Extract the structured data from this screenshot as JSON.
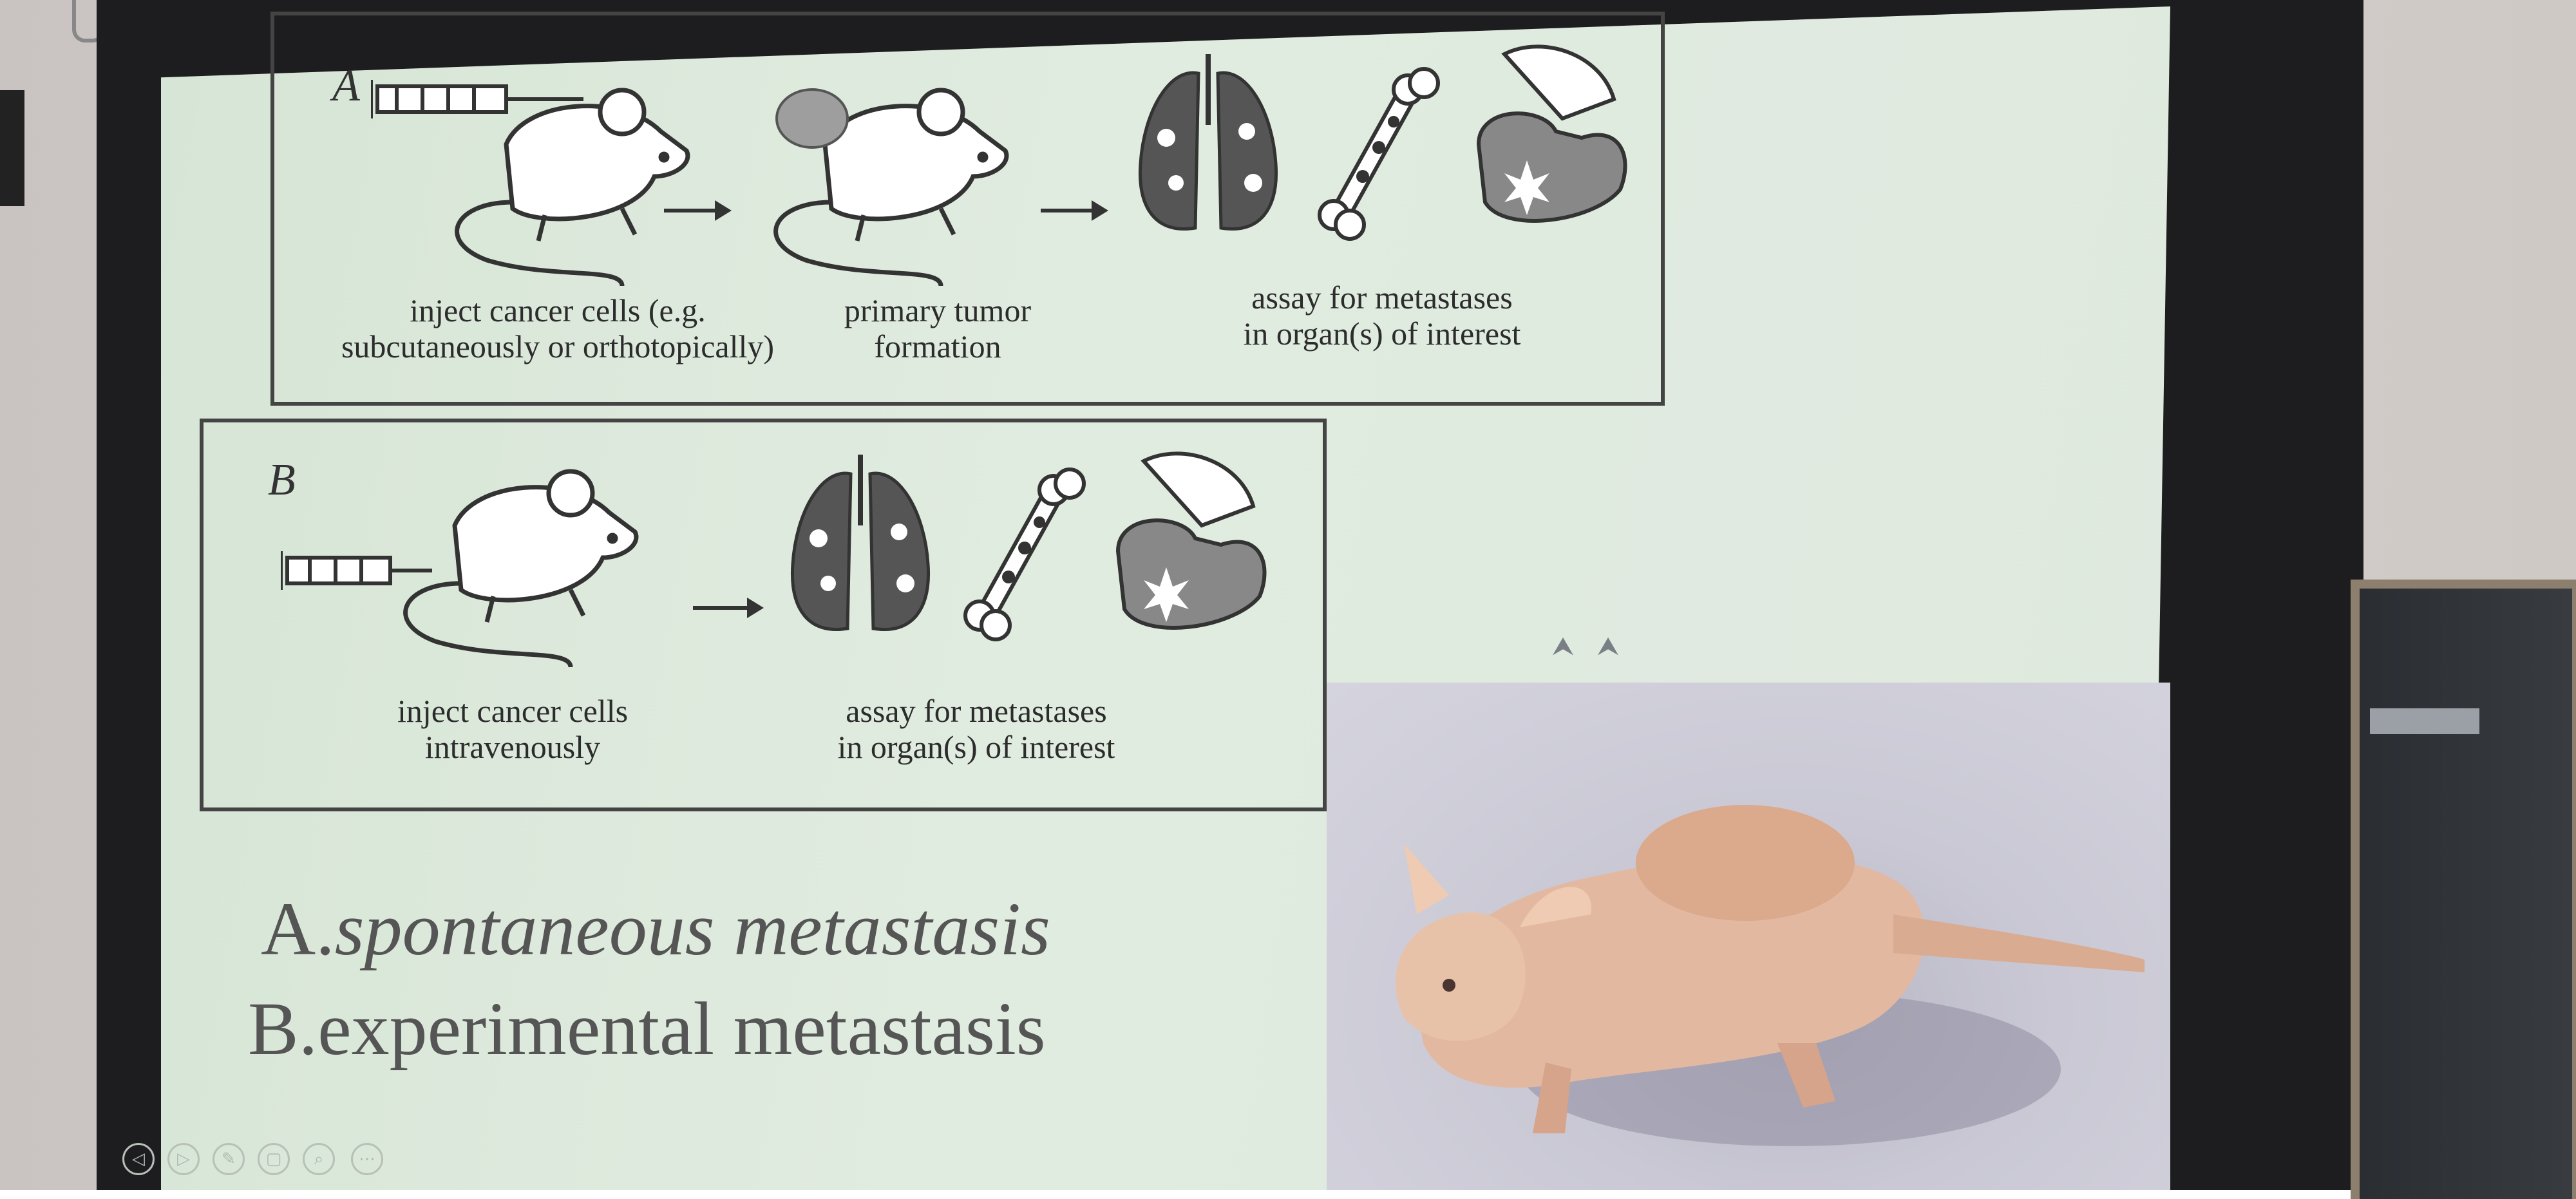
{
  "panel_a": {
    "letter": "A",
    "caption_inject_line1": "inject cancer cells (e.g.",
    "caption_inject_line2": "subcutaneously or orthotopically)",
    "caption_tumor_line1": "primary tumor",
    "caption_tumor_line2": "formation",
    "caption_assay_line1": "assay for metastases",
    "caption_assay_line2": "in organ(s) of interest"
  },
  "panel_b": {
    "letter": "B",
    "caption_inject_line1": "inject cancer cells",
    "caption_inject_line2": "intravenously",
    "caption_assay_line1": "assay for metastases",
    "caption_assay_line2": "in organ(s) of interest"
  },
  "legend": {
    "line_a_prefix": "A.",
    "line_a_text": "spontaneous metastasis",
    "line_b_prefix": "B.",
    "line_b_text": "experimental metastasis"
  },
  "colors": {
    "slide_background": "#dfe9df",
    "ink": "#333333",
    "legend_text": "#555555",
    "mouse_skin": "#e2b9a0"
  },
  "icons": {
    "syringe": "syringe-icon",
    "mouse": "mouse-icon",
    "lungs": "lungs-icon",
    "bone": "bone-icon",
    "liver": "liver-icon",
    "cursor": "cursor-icon"
  },
  "controls": [
    "◁",
    "▷",
    "✎",
    "▢",
    "⌕",
    "⋯"
  ]
}
